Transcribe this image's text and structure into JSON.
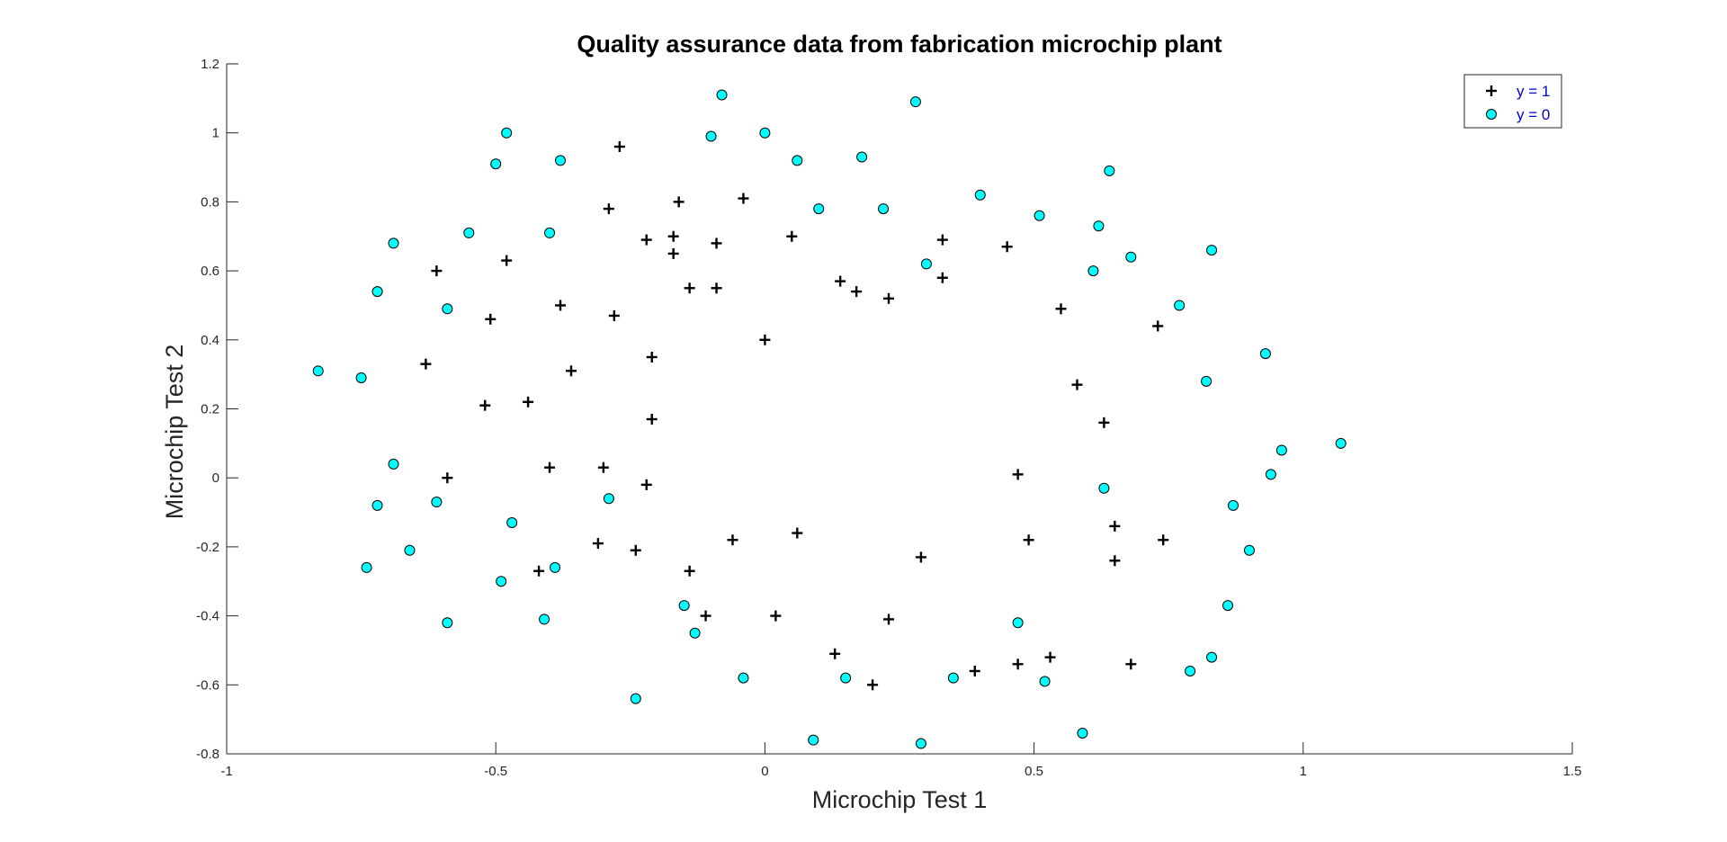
{
  "chart_data": {
    "type": "scatter",
    "title": "Quality assurance data from fabrication microchip plant",
    "xlabel": "Microchip Test 1",
    "ylabel": "Microchip Test 2",
    "xlim": [
      -1,
      1.5
    ],
    "ylim": [
      -0.8,
      1.2
    ],
    "xticks": [
      -1,
      -0.5,
      0,
      0.5,
      1,
      1.5
    ],
    "xtick_labels": [
      "-1",
      "-0.5",
      "0",
      "0.5",
      "1",
      "1.5"
    ],
    "yticks": [
      -0.8,
      -0.6,
      -0.4,
      -0.2,
      0,
      0.2,
      0.4,
      0.6,
      0.8,
      1,
      1.2
    ],
    "ytick_labels": [
      "-0.8",
      "-0.6",
      "-0.4",
      "-0.2",
      "0",
      "0.2",
      "0.4",
      "0.6",
      "0.8",
      "1",
      "1.2"
    ],
    "grid": false,
    "legend_position": "top-right",
    "series": [
      {
        "name": "y = 1",
        "marker": "plus",
        "color": "#000000",
        "points": [
          [
            -0.27,
            0.96
          ],
          [
            -0.29,
            0.78
          ],
          [
            -0.16,
            0.8
          ],
          [
            -0.04,
            0.81
          ],
          [
            -0.22,
            0.69
          ],
          [
            -0.17,
            0.7
          ],
          [
            -0.09,
            0.68
          ],
          [
            -0.17,
            0.65
          ],
          [
            0.05,
            0.7
          ],
          [
            -0.61,
            0.6
          ],
          [
            -0.48,
            0.63
          ],
          [
            -0.14,
            0.55
          ],
          [
            -0.09,
            0.55
          ],
          [
            0.14,
            0.57
          ],
          [
            0.17,
            0.54
          ],
          [
            0.23,
            0.52
          ],
          [
            0.33,
            0.69
          ],
          [
            0.33,
            0.58
          ],
          [
            0.45,
            0.67
          ],
          [
            -0.38,
            0.5
          ],
          [
            -0.51,
            0.46
          ],
          [
            -0.28,
            0.47
          ],
          [
            0.55,
            0.49
          ],
          [
            0.73,
            0.44
          ],
          [
            -0.63,
            0.33
          ],
          [
            -0.36,
            0.31
          ],
          [
            -0.21,
            0.35
          ],
          [
            0.0,
            0.4
          ],
          [
            -0.52,
            0.21
          ],
          [
            -0.44,
            0.22
          ],
          [
            -0.21,
            0.17
          ],
          [
            0.58,
            0.27
          ],
          [
            0.63,
            0.16
          ],
          [
            -0.59,
            0.0
          ],
          [
            -0.4,
            0.03
          ],
          [
            -0.3,
            0.03
          ],
          [
            -0.22,
            -0.02
          ],
          [
            0.47,
            0.01
          ],
          [
            0.65,
            -0.14
          ],
          [
            -0.31,
            -0.19
          ],
          [
            -0.24,
            -0.21
          ],
          [
            -0.06,
            -0.18
          ],
          [
            0.06,
            -0.16
          ],
          [
            0.29,
            -0.23
          ],
          [
            0.49,
            -0.18
          ],
          [
            0.74,
            -0.18
          ],
          [
            0.65,
            -0.24
          ],
          [
            -0.42,
            -0.27
          ],
          [
            -0.14,
            -0.27
          ],
          [
            -0.11,
            -0.4
          ],
          [
            0.02,
            -0.4
          ],
          [
            0.23,
            -0.41
          ],
          [
            0.13,
            -0.51
          ],
          [
            0.2,
            -0.6
          ],
          [
            0.39,
            -0.56
          ],
          [
            0.47,
            -0.54
          ],
          [
            0.53,
            -0.52
          ],
          [
            0.68,
            -0.54
          ]
        ]
      },
      {
        "name": "y = 0",
        "marker": "circle",
        "color": "#00ffff",
        "points": [
          [
            -0.08,
            1.11
          ],
          [
            0.28,
            1.09
          ],
          [
            -0.48,
            1.0
          ],
          [
            -0.1,
            0.99
          ],
          [
            0.0,
            1.0
          ],
          [
            -0.5,
            0.91
          ],
          [
            -0.38,
            0.92
          ],
          [
            0.06,
            0.92
          ],
          [
            0.18,
            0.93
          ],
          [
            0.64,
            0.89
          ],
          [
            0.4,
            0.82
          ],
          [
            0.1,
            0.78
          ],
          [
            0.22,
            0.78
          ],
          [
            0.51,
            0.76
          ],
          [
            -0.55,
            0.71
          ],
          [
            -0.4,
            0.71
          ],
          [
            -0.69,
            0.68
          ],
          [
            0.62,
            0.73
          ],
          [
            0.83,
            0.66
          ],
          [
            0.3,
            0.62
          ],
          [
            0.68,
            0.64
          ],
          [
            0.61,
            0.6
          ],
          [
            -0.72,
            0.54
          ],
          [
            -0.59,
            0.49
          ],
          [
            0.77,
            0.5
          ],
          [
            0.93,
            0.36
          ],
          [
            -0.83,
            0.31
          ],
          [
            -0.75,
            0.29
          ],
          [
            0.82,
            0.28
          ],
          [
            1.07,
            0.1
          ],
          [
            0.96,
            0.08
          ],
          [
            -0.69,
            0.04
          ],
          [
            0.94,
            0.01
          ],
          [
            0.63,
            -0.03
          ],
          [
            -0.61,
            -0.07
          ],
          [
            -0.29,
            -0.06
          ],
          [
            -0.72,
            -0.08
          ],
          [
            -0.47,
            -0.13
          ],
          [
            0.87,
            -0.08
          ],
          [
            -0.66,
            -0.21
          ],
          [
            0.9,
            -0.21
          ],
          [
            -0.74,
            -0.26
          ],
          [
            -0.49,
            -0.3
          ],
          [
            -0.39,
            -0.26
          ],
          [
            -0.15,
            -0.37
          ],
          [
            0.86,
            -0.37
          ],
          [
            -0.59,
            -0.42
          ],
          [
            -0.41,
            -0.41
          ],
          [
            -0.13,
            -0.45
          ],
          [
            0.47,
            -0.42
          ],
          [
            -0.04,
            -0.58
          ],
          [
            0.15,
            -0.58
          ],
          [
            0.35,
            -0.58
          ],
          [
            0.52,
            -0.59
          ],
          [
            0.79,
            -0.56
          ],
          [
            0.83,
            -0.52
          ],
          [
            -0.24,
            -0.64
          ],
          [
            0.09,
            -0.76
          ],
          [
            0.29,
            -0.77
          ],
          [
            0.59,
            -0.74
          ]
        ]
      }
    ]
  }
}
